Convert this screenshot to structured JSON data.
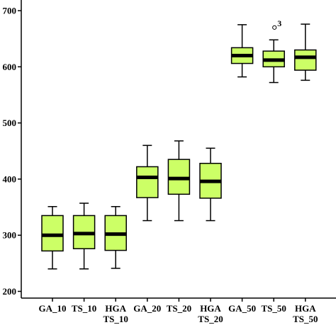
{
  "chart_data": {
    "type": "box",
    "title": "",
    "xlabel": "",
    "ylabel": "",
    "ylim": [
      188,
      719
    ],
    "yticks": [
      {
        "value": 200,
        "label": "200"
      },
      {
        "value": 300,
        "label": "300"
      },
      {
        "value": 400,
        "label": "400"
      },
      {
        "value": 500,
        "label": "500"
      },
      {
        "value": 600,
        "label": "600"
      },
      {
        "value": 700,
        "label": "700"
      }
    ],
    "categories": [
      [
        "GA_10"
      ],
      [
        "TS_10"
      ],
      [
        "HGA",
        "TS_10"
      ],
      [
        "GA_20"
      ],
      [
        "TS_20"
      ],
      [
        "HGA",
        "TS_20"
      ],
      [
        "GA_50"
      ],
      [
        "TS_50"
      ],
      [
        "HGA",
        "TS_50"
      ]
    ],
    "boxes": [
      {
        "min": 240,
        "q1": 272,
        "median": 300,
        "q3": 335,
        "max": 351
      },
      {
        "min": 240,
        "q1": 276,
        "median": 303,
        "q3": 335,
        "max": 357
      },
      {
        "min": 241,
        "q1": 273,
        "median": 302,
        "q3": 335,
        "max": 351
      },
      {
        "min": 326,
        "q1": 367,
        "median": 403,
        "q3": 422,
        "max": 460
      },
      {
        "min": 326,
        "q1": 373,
        "median": 401,
        "q3": 435,
        "max": 468
      },
      {
        "min": 326,
        "q1": 366,
        "median": 396,
        "q3": 428,
        "max": 455
      },
      {
        "min": 582,
        "q1": 606,
        "median": 620,
        "q3": 634,
        "max": 675
      },
      {
        "min": 572,
        "q1": 600,
        "median": 612,
        "q3": 628,
        "max": 648
      },
      {
        "min": 576,
        "q1": 594,
        "median": 617,
        "q3": 630,
        "max": 676
      }
    ],
    "outliers": [
      {
        "box": 7,
        "value": 670,
        "label": "3"
      }
    ],
    "colors": {
      "box_fill": "#ccff66",
      "stroke": "#000000",
      "background": "#ffffff"
    },
    "grid": false,
    "legend": "none"
  }
}
